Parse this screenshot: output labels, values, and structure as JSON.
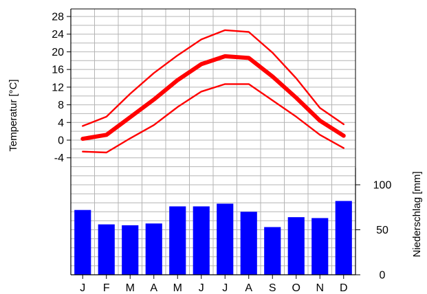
{
  "chart_data": {
    "type": "climate-diagram",
    "categories": [
      "J",
      "F",
      "M",
      "A",
      "M",
      "J",
      "J",
      "A",
      "S",
      "O",
      "N",
      "D"
    ],
    "temperature": {
      "ylabel": "Temperatur [°C]",
      "ylim": [
        -6,
        30
      ],
      "ticks": [
        "28",
        "24",
        "20",
        "16",
        "12",
        "8",
        "4",
        "0",
        "-4"
      ],
      "series": [
        {
          "values": [
            3.2,
            5.3,
            10.5,
            15.2,
            19.2,
            22.8,
            24.9,
            24.5,
            19.8,
            14.0,
            7.3,
            3.6
          ],
          "color": "#ff0000",
          "style": "thin"
        },
        {
          "values": [
            0.3,
            1.2,
            5.2,
            9.2,
            13.6,
            17.2,
            19.0,
            18.6,
            14.4,
            9.6,
            4.4,
            1.0
          ],
          "color": "#ff0000",
          "style": "thick"
        },
        {
          "values": [
            -2.6,
            -2.8,
            0.4,
            3.4,
            7.5,
            11.0,
            12.7,
            12.7,
            9.0,
            5.3,
            1.2,
            -1.8
          ],
          "color": "#ff0000",
          "style": "thin"
        }
      ]
    },
    "precipitation": {
      "ylabel": "Niederschlag [mm]",
      "ylim": [
        0,
        120
      ],
      "ticks": [
        "100",
        "50",
        "0"
      ],
      "values": [
        72,
        56,
        55,
        57,
        76,
        76,
        79,
        70,
        53,
        64,
        63,
        82
      ],
      "color": "#0000ff"
    },
    "grid": true
  }
}
